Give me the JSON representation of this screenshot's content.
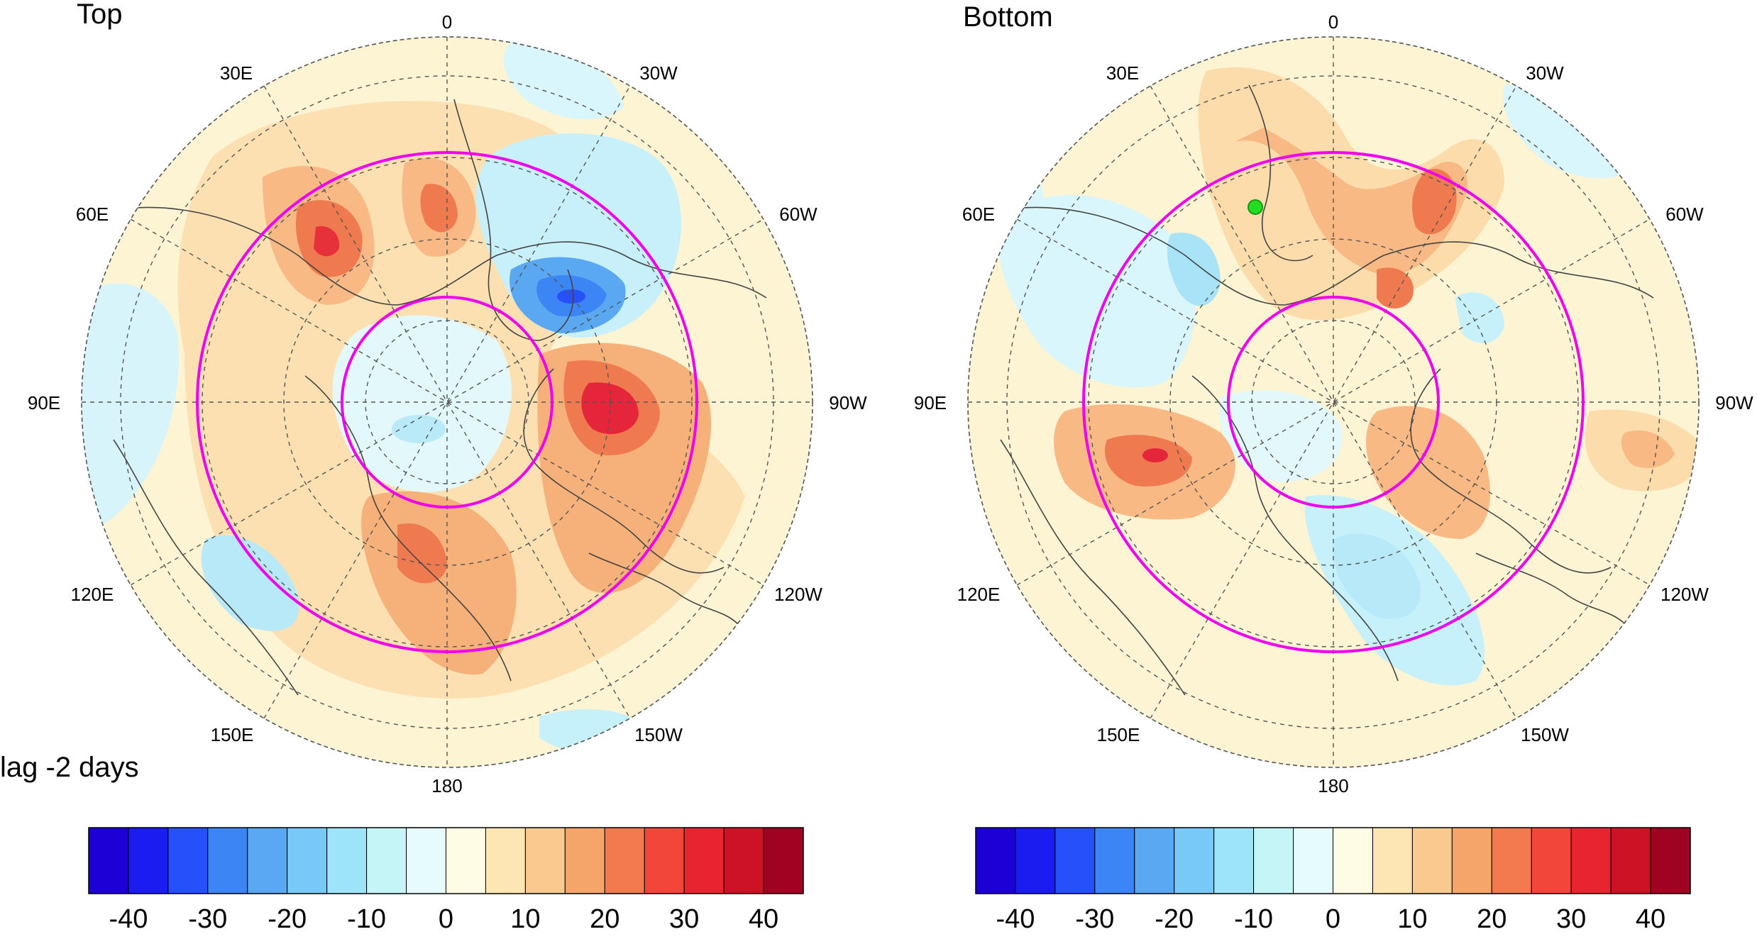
{
  "panels": [
    {
      "title": "Top",
      "lon_labels": [
        "0",
        "30W",
        "60W",
        "90W",
        "120W",
        "150W",
        "180",
        "150E",
        "120E",
        "90E",
        "60E",
        "30E"
      ]
    },
    {
      "title": "Bottom",
      "lon_labels": [
        "0",
        "30W",
        "60W",
        "90W",
        "120W",
        "150W",
        "180",
        "150E",
        "120E",
        "90E",
        "60E",
        "30E"
      ]
    }
  ],
  "lag_label": "lag -2 days",
  "colorbar": {
    "colors": [
      "#1d00d6",
      "#1a1cf0",
      "#2650fa",
      "#3c85f5",
      "#5aa8f2",
      "#78c8f8",
      "#9ee4f8",
      "#c6f5f8",
      "#e6fbfb",
      "#fefce4",
      "#fde6b4",
      "#fac98f",
      "#f5a56a",
      "#f27a4e",
      "#f2463a",
      "#e82430",
      "#cd1225",
      "#a00321"
    ],
    "tick_labels": [
      "-40",
      "-30",
      "-20",
      "-10",
      "0",
      "10",
      "20",
      "30",
      "40"
    ]
  },
  "colors": {
    "ring": "#ee00ee",
    "marker": "#22dd22",
    "coast": "#444444"
  }
}
